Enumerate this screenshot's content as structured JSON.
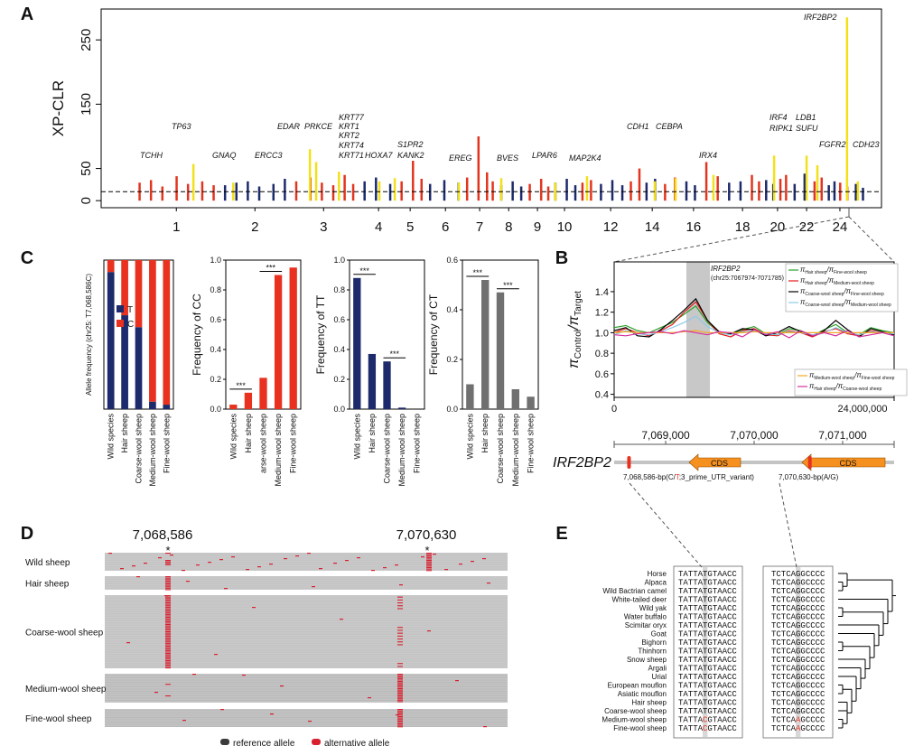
{
  "panels": [
    "A",
    "B",
    "C",
    "D",
    "E"
  ],
  "chart_data": [
    {
      "type": "manhattan",
      "ylabel": "XP-CLR",
      "xlim": [
        -115,
        2625
      ],
      "ylim": [
        -11,
        298
      ],
      "xticks": [
        {
          "value": 149,
          "label": "1"
        },
        {
          "value": 425,
          "label": "2"
        },
        {
          "value": 666,
          "label": "3"
        },
        {
          "value": 859,
          "label": "4"
        },
        {
          "value": 970,
          "label": "5"
        },
        {
          "value": 1094,
          "label": "6"
        },
        {
          "value": 1214,
          "label": "7"
        },
        {
          "value": 1316,
          "label": "8"
        },
        {
          "value": 1417,
          "label": "9"
        },
        {
          "value": 1512,
          "label": "10"
        },
        {
          "value": 1674,
          "label": "12"
        },
        {
          "value": 1820,
          "label": "14"
        },
        {
          "value": 1965,
          "label": "16"
        },
        {
          "value": 2137,
          "label": "18"
        },
        {
          "value": 2260,
          "label": "20"
        },
        {
          "value": 2362,
          "label": "22"
        },
        {
          "value": 2479,
          "label": "24"
        }
      ],
      "yticks": [
        0,
        50,
        150,
        250
      ],
      "hline": 14,
      "series": [
        {
          "color": "#e2351f",
          "x": [
            20,
            60,
            100,
            150,
            190,
            240,
            280,
            570,
            620,
            660,
            700,
            740,
            770,
            940,
            980,
            1010,
            1170,
            1210,
            1240,
            1260,
            1390,
            1430,
            1455,
            1575,
            1605,
            1745,
            1775,
            1865,
            1900,
            2010,
            2050,
            2170,
            2195,
            2270,
            2290,
            2390,
            2415,
            2480,
            2505
          ],
          "values": [
            28,
            32,
            22,
            38,
            26,
            30,
            24,
            30,
            36,
            28,
            24,
            40,
            26,
            30,
            62,
            34,
            36,
            100,
            44,
            30,
            26,
            34,
            22,
            28,
            32,
            30,
            50,
            26,
            36,
            60,
            38,
            40,
            30,
            34,
            40,
            30,
            36,
            28,
            22
          ]
        },
        {
          "color": "#1d2a6b",
          "x": [
            320,
            360,
            400,
            440,
            490,
            530,
            810,
            850,
            900,
            1040,
            1090,
            1140,
            1290,
            1330,
            1360,
            1480,
            1520,
            1550,
            1640,
            1680,
            1715,
            1800,
            1830,
            1940,
            1970,
            2090,
            2130,
            2220,
            2245,
            2320,
            2355,
            2440,
            2460,
            2535,
            2560
          ],
          "values": [
            24,
            28,
            30,
            22,
            26,
            34,
            30,
            36,
            26,
            26,
            32,
            28,
            24,
            30,
            22,
            28,
            34,
            24,
            26,
            32,
            24,
            28,
            34,
            30,
            24,
            28,
            30,
            32,
            26,
            26,
            42,
            24,
            30,
            26,
            20
          ]
        },
        {
          "color": "#f2e01a",
          "x": [
            209,
            349,
            618,
            640,
            720,
            862,
            916,
            1141,
            1290,
            1480,
            1591,
            1829,
            1902,
            2035,
            2248,
            2362,
            2400,
            2504,
            2542
          ],
          "values": [
            57,
            28,
            80,
            60,
            45,
            30,
            35,
            28,
            35,
            28,
            38,
            30,
            35,
            40,
            70,
            70,
            55,
            285,
            30
          ]
        }
      ],
      "annotations": [
        "TCHH",
        "TP63",
        "GNAQ",
        "ERCC3",
        "EDAR",
        "PRKCE",
        "KRT77",
        "KRT1",
        "KRT2",
        "KRT74",
        "KRT71",
        "HOXA7",
        "S1PR2",
        "KANK2",
        "EREG",
        "BVES",
        "LPAR6",
        "MAP2K4",
        "CDH1",
        "CEBPA",
        "IRX4",
        "IRF4",
        "RIPK1",
        "LDB1",
        "SUFU",
        "FGFR2",
        "CDH23",
        "IRF2BP2"
      ]
    },
    {
      "type": "stacked-bar",
      "ylabel": "Allele frequency (chr25: T7,068,586C)",
      "categories": [
        "Wild species",
        "Hair sheep",
        "Coarse-wool sheep",
        "Medium-wool sheep",
        "Fine-wool sheep"
      ],
      "ylim": [
        0,
        1
      ],
      "series": [
        {
          "name": "T",
          "color": "#1d2a6b",
          "values": [
            0.92,
            0.63,
            0.55,
            0.05,
            0.03
          ]
        },
        {
          "name": "C",
          "color": "#e8311f",
          "values": [
            0.08,
            0.37,
            0.45,
            0.95,
            0.97
          ]
        }
      ]
    },
    {
      "type": "bar",
      "ylabel": "Frequency of CC",
      "categories": [
        "Wild species",
        "Hair sheep",
        "arse-wool sheep",
        "Medium-wool sheep",
        "Fine-wool sheep"
      ],
      "values": [
        0.03,
        0.11,
        0.21,
        0.9,
        0.95
      ],
      "color": "#e8311f",
      "ylim": [
        0,
        1
      ],
      "yticks": [
        {
          "value": 0,
          "label": "0.0"
        },
        0.2,
        0.4,
        0.6,
        0.8,
        {
          "value": 1,
          "label": "1.0"
        }
      ],
      "significance": [
        {
          "pair": [
            0,
            1
          ],
          "label": "***"
        },
        {
          "pair": [
            2,
            3
          ],
          "label": "***"
        }
      ]
    },
    {
      "type": "bar",
      "ylabel": "Frequency of TT",
      "categories": [
        "Wild species",
        "Hair sheep",
        "Coarse-wool sheep",
        "Medium-wool sheep",
        "Fine-wool sheep"
      ],
      "values": [
        0.88,
        0.37,
        0.32,
        0.01,
        0
      ],
      "color": "#1d2a6b",
      "ylim": [
        0,
        1
      ],
      "yticks": [
        {
          "value": 0,
          "label": "0.0"
        },
        0.2,
        0.4,
        0.6,
        0.8,
        {
          "value": 1,
          "label": "1.0"
        }
      ],
      "significance": [
        {
          "pair": [
            0,
            1
          ],
          "label": "***"
        },
        {
          "pair": [
            2,
            3
          ],
          "label": "***"
        }
      ]
    },
    {
      "type": "bar",
      "ylabel": "Frequency of CT",
      "categories": [
        "Wild species",
        "Hair sheep",
        "Coarse-wool sheep",
        "Medium-wool sheep",
        "Fine-wool sheep"
      ],
      "values": [
        0.1,
        0.52,
        0.47,
        0.08,
        0.05
      ],
      "color": "#707070",
      "ylim": [
        0,
        0.6
      ],
      "yticks": [
        {
          "value": 0,
          "label": "0.0"
        },
        0.2,
        0.4,
        0.6
      ],
      "significance": [
        {
          "pair": [
            0,
            1
          ],
          "label": "***"
        },
        {
          "pair": [
            2,
            3
          ],
          "label": "***"
        }
      ]
    },
    {
      "type": "line",
      "ylabel": [
        "π",
        "Control",
        "/π",
        "Target"
      ],
      "x": [
        0,
        1000000,
        2000000,
        3000000,
        4000000,
        5000000,
        6000000,
        7000000,
        8000000,
        9000000,
        10000000,
        11000000,
        12000000,
        13000000,
        14000000,
        15000000,
        16000000,
        17000000,
        18000000,
        19000000,
        20000000,
        21000000,
        22000000,
        23000000,
        24000000
      ],
      "xlim": [
        0,
        24000000
      ],
      "xticks": [
        0,
        {
          "value": 24000000,
          "label": "24,000,000"
        }
      ],
      "ylim": [
        0.37,
        1.69
      ],
      "yticks": [
        0.4,
        0.6,
        0.8,
        {
          "value": 1,
          "label": "1.0"
        },
        1.2,
        1.4
      ],
      "highlight": [
        6190000,
        8210000
      ],
      "annotation": [
        "IRF2BP2",
        "(chr25:7067974-7071785)"
      ],
      "series": [
        {
          "name": [
            "π",
            "Hair sheep",
            "/π",
            "Fine-wool sheep"
          ],
          "color": "#2ca02c",
          "legend": "top",
          "values": [
            1.05,
            1.07,
            1.02,
            1.0,
            1.05,
            1.1,
            1.18,
            1.26,
            1.1,
            1.0,
            0.98,
            1.03,
            1.06,
            0.99,
            0.98,
            1.04,
            1.02,
            0.97,
            1.03,
            1.08,
            1.0,
            0.98,
            1.05,
            1.02,
            1.0
          ]
        },
        {
          "name": [
            "π",
            "Hair sheep",
            "/π",
            "Medium-wool sheep"
          ],
          "color": "#e41a1c",
          "legend": "top",
          "values": [
            1.0,
            1.04,
            1.0,
            0.97,
            1.02,
            1.08,
            1.2,
            1.3,
            1.12,
            0.99,
            0.96,
            1.02,
            1.04,
            0.98,
            0.97,
            1.02,
            1.0,
            0.96,
            1.01,
            1.04,
            0.99,
            0.97,
            1.02,
            1.0,
            0.99
          ]
        },
        {
          "name": [
            "π",
            "Coarse-wool sheep",
            "/π",
            "Fine-wool sheep"
          ],
          "color": "#000000",
          "legend": "top",
          "values": [
            1.02,
            1.05,
            0.97,
            0.96,
            1.03,
            1.12,
            1.22,
            1.33,
            1.12,
            1.01,
            0.99,
            1.04,
            1.03,
            0.97,
            1.0,
            1.06,
            1.01,
            0.97,
            1.02,
            1.12,
            1.03,
            0.96,
            1.04,
            1.01,
            0.98
          ]
        },
        {
          "name": [
            "π",
            "Coarse-wool sheep",
            "/π",
            "Medium-wool sheep"
          ],
          "color": "#8ecae6",
          "legend": "top",
          "values": [
            0.98,
            1.02,
            0.99,
            0.98,
            1.01,
            1.05,
            1.1,
            1.16,
            1.06,
            1.0,
            0.98,
            1.01,
            1.02,
            0.99,
            0.98,
            1.01,
            1.0,
            0.98,
            1.0,
            1.05,
            1.0,
            0.98,
            1.01,
            1.0,
            0.99
          ]
        },
        {
          "name": [
            "π",
            "Medium-wool sheep",
            "/π",
            "Fine-wool sheep"
          ],
          "color": "#f5a623",
          "legend": "bottom",
          "values": [
            1.0,
            1.01,
            1.0,
            1.0,
            1.0,
            1.0,
            1.01,
            1.02,
            1.0,
            1.0,
            1.0,
            1.0,
            1.01,
            1.0,
            1.0,
            1.0,
            1.0,
            1.0,
            1.0,
            1.0,
            1.0,
            1.0,
            1.0,
            1.0,
            1.0
          ]
        },
        {
          "name": [
            "π",
            "Hair sheep",
            "/π",
            "Coarse-wool sheep"
          ],
          "color": "#d62fa0",
          "legend": "bottom",
          "values": [
            0.98,
            0.97,
            0.99,
            1.0,
            1.01,
            0.99,
            1.02,
            1.0,
            0.98,
            1.01,
            1.0,
            0.96,
            1.03,
            0.98,
            1.01,
            0.95,
            1.02,
            0.97,
            1.0,
            0.97,
            1.02,
            0.96,
            0.98,
            1.0,
            0.97
          ]
        }
      ]
    }
  ],
  "gene_model": {
    "gene": "IRF2BP2",
    "xlim": [
      7068418,
      7071582
    ],
    "xticks": [
      {
        "value": 7069000,
        "label": "7,069,000"
      },
      {
        "value": 7070000,
        "label": "7,070,000"
      },
      {
        "value": 7071000,
        "label": "7,071,000"
      }
    ],
    "features": [
      "CDS",
      "CDS"
    ],
    "variants": [
      {
        "position": 7068586,
        "label": [
          "7,068,586-bp(C/",
          "T",
          ";3_prime_UTR_variant)"
        ]
      },
      {
        "position": 7070630,
        "label": [
          "7,070,630-bp(A/G)"
        ]
      }
    ]
  },
  "haplotypes": {
    "positions": [
      "7,068,586",
      "7,070,630"
    ],
    "marker": "*",
    "groups": [
      "Wild sheep",
      "Hair sheep",
      "Coarse-wool sheep",
      "Medium-wool sheep",
      "Fine-wool sheep"
    ],
    "legend": [
      "reference allele",
      "alternative allele"
    ]
  },
  "alignment": {
    "species": [
      "Horse",
      "Alpaca",
      "Wild Bactrian camel",
      "White-tailed deer",
      "Wild yak",
      "Water buffalo",
      "Scimitar oryx",
      "Goat",
      "Bighorn",
      "Thinhorn",
      "Snow sheep",
      "Argali",
      "Urial",
      "European mouflon",
      "Asiatic mouflon",
      "Hair sheep",
      "Coarse-wool sheep",
      "Medium-wool sheep",
      "Fine-wool sheep"
    ],
    "seq1": [
      [
        "TATTA",
        "T",
        "GTAACC"
      ],
      [
        "TATTA",
        "T",
        "GTAACC"
      ],
      [
        "TATTA",
        "T",
        "GTAACC"
      ],
      [
        "TATTA",
        "T",
        "GTAACC"
      ],
      [
        "TATTA",
        "T",
        "GTAACC"
      ],
      [
        "TATTA",
        "T",
        "GTAACC"
      ],
      [
        "TATTA",
        "T",
        "GTAACC"
      ],
      [
        "TATTA",
        "T",
        "GTAACC"
      ],
      [
        "TATTA",
        "T",
        "GTAACC"
      ],
      [
        "TATTA",
        "T",
        "GTAACC"
      ],
      [
        "TATTA",
        "T",
        "GTAACC"
      ],
      [
        "TATTA",
        "T",
        "GTAACC"
      ],
      [
        "TATTA",
        "T",
        "GTAACC"
      ],
      [
        "TATTA",
        "T",
        "GTAACC"
      ],
      [
        "TATTA",
        "T",
        "GTAACC"
      ],
      [
        "TATTA",
        "T",
        "GTAACC"
      ],
      [
        "TATTA",
        "T",
        "GTAACC"
      ],
      [
        "TATTA",
        "C",
        "GTAACC"
      ],
      [
        "TATTA",
        "C",
        "GTAACC"
      ]
    ],
    "seq2": [
      [
        "TCTCA",
        "G",
        "GCCCC"
      ],
      [
        "TCTCA",
        "G",
        "GCCCC"
      ],
      [
        "TCTCA",
        "G",
        "GCCCC"
      ],
      [
        "TCTCA",
        "G",
        "GCCCC"
      ],
      [
        "TCTCA",
        "G",
        "GCCCC"
      ],
      [
        "TCTCA",
        "G",
        "GCCCC"
      ],
      [
        "TCTCA",
        "G",
        "GCCCC"
      ],
      [
        "TCTCA",
        "G",
        "GCCCC"
      ],
      [
        "TCTCA",
        "G",
        "GCCCC"
      ],
      [
        "TCTCA",
        "G",
        "GCCCC"
      ],
      [
        "TCTCA",
        "G",
        "GCCCC"
      ],
      [
        "TCTCA",
        "G",
        "GCCCC"
      ],
      [
        "TCTCA",
        "G",
        "GCCCC"
      ],
      [
        "TCTCA",
        "G",
        "GCCCC"
      ],
      [
        "TCTCA",
        "G",
        "GCCCC"
      ],
      [
        "TCTCA",
        "G",
        "GCCCC"
      ],
      [
        "TCTCA",
        "G",
        "GCCCC"
      ],
      [
        "TCTCA",
        "A",
        "GCCCC"
      ],
      [
        "TCTCA",
        "A",
        "GCCCC"
      ]
    ]
  }
}
